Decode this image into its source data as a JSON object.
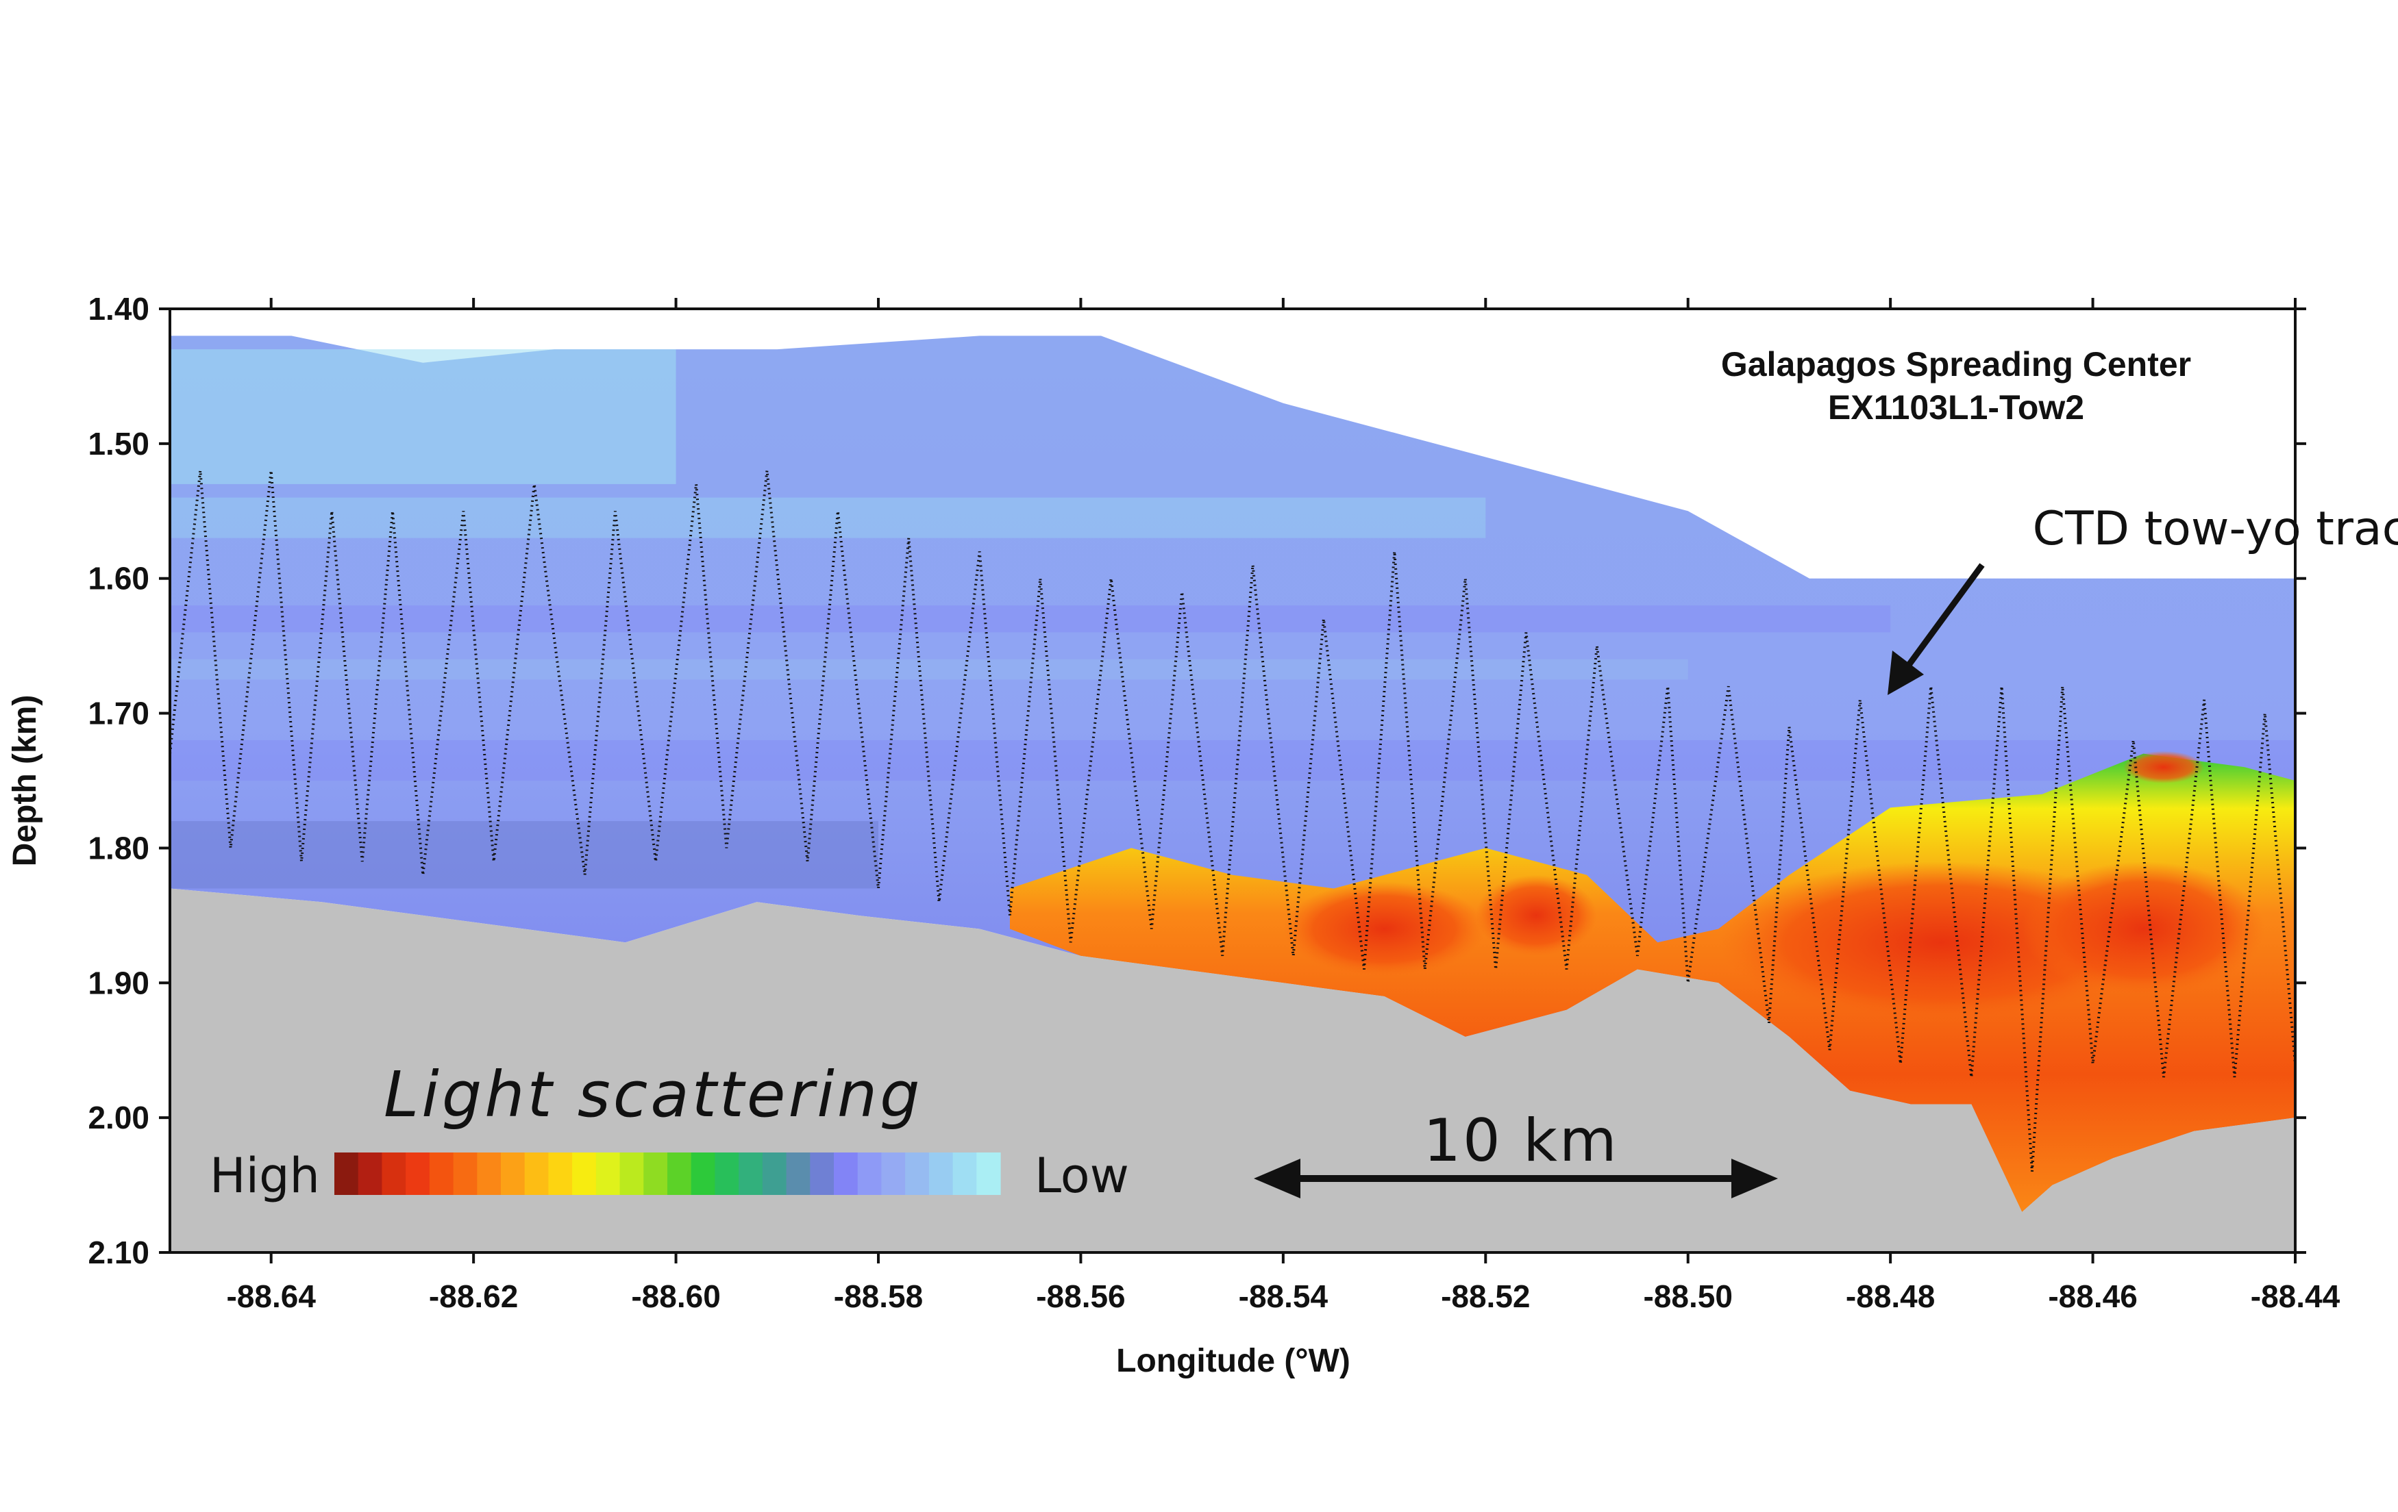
{
  "chart_data": {
    "type": "heatmap",
    "title_lines": [
      "Galapagos Spreading Center",
      "EX1103L1-Tow2"
    ],
    "xlabel": "Longitude (°W)",
    "ylabel": "Depth (km)",
    "xlim": [
      -88.65,
      -88.44
    ],
    "ylim": [
      2.1,
      1.4
    ],
    "x_ticks": [
      {
        "value": -88.64,
        "label": "-88.64"
      },
      {
        "value": -88.62,
        "label": "-88.62"
      },
      {
        "value": -88.6,
        "label": "-88.60"
      },
      {
        "value": -88.58,
        "label": "-88.58"
      },
      {
        "value": -88.56,
        "label": "-88.56"
      },
      {
        "value": -88.54,
        "label": "-88.54"
      },
      {
        "value": -88.52,
        "label": "-88.52"
      },
      {
        "value": -88.5,
        "label": "-88.50"
      },
      {
        "value": -88.48,
        "label": "-88.48"
      },
      {
        "value": -88.46,
        "label": "-88.46"
      },
      {
        "value": -88.44,
        "label": "-88.44"
      }
    ],
    "y_ticks": [
      {
        "value": 1.4,
        "label": "1.40"
      },
      {
        "value": 1.5,
        "label": "1.50"
      },
      {
        "value": 1.6,
        "label": "1.60"
      },
      {
        "value": 1.7,
        "label": "1.70"
      },
      {
        "value": 1.8,
        "label": "1.80"
      },
      {
        "value": 1.9,
        "label": "1.90"
      },
      {
        "value": 2.0,
        "label": "2.00"
      },
      {
        "value": 2.1,
        "label": "2.10"
      }
    ],
    "data_top": [
      [
        -88.65,
        1.42
      ],
      [
        -88.638,
        1.42
      ],
      [
        -88.625,
        1.44
      ],
      [
        -88.612,
        1.43
      ],
      [
        -88.59,
        1.43
      ],
      [
        -88.57,
        1.42
      ],
      [
        -88.558,
        1.42
      ],
      [
        -88.54,
        1.47
      ],
      [
        -88.52,
        1.51
      ],
      [
        -88.5,
        1.55
      ],
      [
        -88.488,
        1.6
      ],
      [
        -88.44,
        1.6
      ]
    ],
    "seafloor": [
      [
        -88.65,
        1.83
      ],
      [
        -88.635,
        1.84
      ],
      [
        -88.625,
        1.85
      ],
      [
        -88.615,
        1.86
      ],
      [
        -88.605,
        1.87
      ],
      [
        -88.592,
        1.84
      ],
      [
        -88.582,
        1.85
      ],
      [
        -88.57,
        1.86
      ],
      [
        -88.56,
        1.88
      ],
      [
        -88.55,
        1.89
      ],
      [
        -88.54,
        1.9
      ],
      [
        -88.53,
        1.91
      ],
      [
        -88.522,
        1.94
      ],
      [
        -88.512,
        1.92
      ],
      [
        -88.505,
        1.89
      ],
      [
        -88.497,
        1.9
      ],
      [
        -88.49,
        1.94
      ],
      [
        -88.484,
        1.98
      ],
      [
        -88.478,
        1.99
      ],
      [
        -88.472,
        1.99
      ],
      [
        -88.467,
        2.07
      ],
      [
        -88.464,
        2.05
      ],
      [
        -88.458,
        2.03
      ],
      [
        -88.45,
        2.01
      ],
      [
        -88.44,
        2.0
      ]
    ],
    "plume_core": [
      [
        -88.567,
        1.83
      ],
      [
        -88.555,
        1.8
      ],
      [
        -88.545,
        1.82
      ],
      [
        -88.535,
        1.83
      ],
      [
        -88.52,
        1.8
      ],
      [
        -88.51,
        1.82
      ],
      [
        -88.503,
        1.87
      ],
      [
        -88.497,
        1.86
      ],
      [
        -88.49,
        1.82
      ],
      [
        -88.48,
        1.77
      ],
      [
        -88.465,
        1.76
      ],
      [
        -88.455,
        1.73
      ],
      [
        -88.445,
        1.74
      ],
      [
        -88.44,
        1.75
      ]
    ],
    "tow_yo_track": [
      [
        -88.65,
        1.73
      ],
      [
        -88.647,
        1.52
      ],
      [
        -88.644,
        1.8
      ],
      [
        -88.64,
        1.52
      ],
      [
        -88.637,
        1.81
      ],
      [
        -88.634,
        1.55
      ],
      [
        -88.631,
        1.81
      ],
      [
        -88.628,
        1.55
      ],
      [
        -88.625,
        1.82
      ],
      [
        -88.621,
        1.55
      ],
      [
        -88.618,
        1.81
      ],
      [
        -88.614,
        1.53
      ],
      [
        -88.609,
        1.82
      ],
      [
        -88.606,
        1.55
      ],
      [
        -88.602,
        1.81
      ],
      [
        -88.598,
        1.53
      ],
      [
        -88.595,
        1.8
      ],
      [
        -88.591,
        1.52
      ],
      [
        -88.587,
        1.81
      ],
      [
        -88.584,
        1.55
      ],
      [
        -88.58,
        1.83
      ],
      [
        -88.577,
        1.57
      ],
      [
        -88.574,
        1.84
      ],
      [
        -88.57,
        1.58
      ],
      [
        -88.567,
        1.85
      ],
      [
        -88.564,
        1.6
      ],
      [
        -88.561,
        1.87
      ],
      [
        -88.557,
        1.6
      ],
      [
        -88.553,
        1.86
      ],
      [
        -88.55,
        1.61
      ],
      [
        -88.546,
        1.88
      ],
      [
        -88.543,
        1.59
      ],
      [
        -88.539,
        1.88
      ],
      [
        -88.536,
        1.63
      ],
      [
        -88.532,
        1.89
      ],
      [
        -88.529,
        1.58
      ],
      [
        -88.526,
        1.89
      ],
      [
        -88.522,
        1.6
      ],
      [
        -88.519,
        1.89
      ],
      [
        -88.516,
        1.64
      ],
      [
        -88.512,
        1.89
      ],
      [
        -88.509,
        1.65
      ],
      [
        -88.505,
        1.88
      ],
      [
        -88.502,
        1.68
      ],
      [
        -88.5,
        1.9
      ],
      [
        -88.496,
        1.68
      ],
      [
        -88.492,
        1.93
      ],
      [
        -88.49,
        1.71
      ],
      [
        -88.486,
        1.95
      ],
      [
        -88.483,
        1.69
      ],
      [
        -88.479,
        1.96
      ],
      [
        -88.476,
        1.68
      ],
      [
        -88.472,
        1.97
      ],
      [
        -88.469,
        1.68
      ],
      [
        -88.466,
        2.04
      ],
      [
        -88.463,
        1.68
      ],
      [
        -88.46,
        1.96
      ],
      [
        -88.456,
        1.72
      ],
      [
        -88.453,
        1.97
      ],
      [
        -88.449,
        1.69
      ],
      [
        -88.446,
        1.97
      ],
      [
        -88.443,
        1.7
      ],
      [
        -88.44,
        1.96
      ]
    ]
  },
  "annotations": {
    "track_label": "CTD tow-yo track",
    "scale_label": "10 km"
  },
  "legend": {
    "title": "Light scattering",
    "high_label": "High",
    "low_label": "Low",
    "colors": [
      "#8b1a0f",
      "#b21f12",
      "#d7300f",
      "#ec3a12",
      "#f3540f",
      "#f76b12",
      "#fa8716",
      "#fca116",
      "#fdbd14",
      "#fdd411",
      "#f7ec10",
      "#dff21b",
      "#bbea1e",
      "#8fdc22",
      "#5cd228",
      "#2dc93a",
      "#28bf5a",
      "#32b07c",
      "#3e9f92",
      "#5a8dad",
      "#6f80d4",
      "#8284f6",
      "#8e9af6",
      "#95aaf3",
      "#96bbf1",
      "#98ccf2",
      "#9fdef3",
      "#aaeef4"
    ]
  }
}
